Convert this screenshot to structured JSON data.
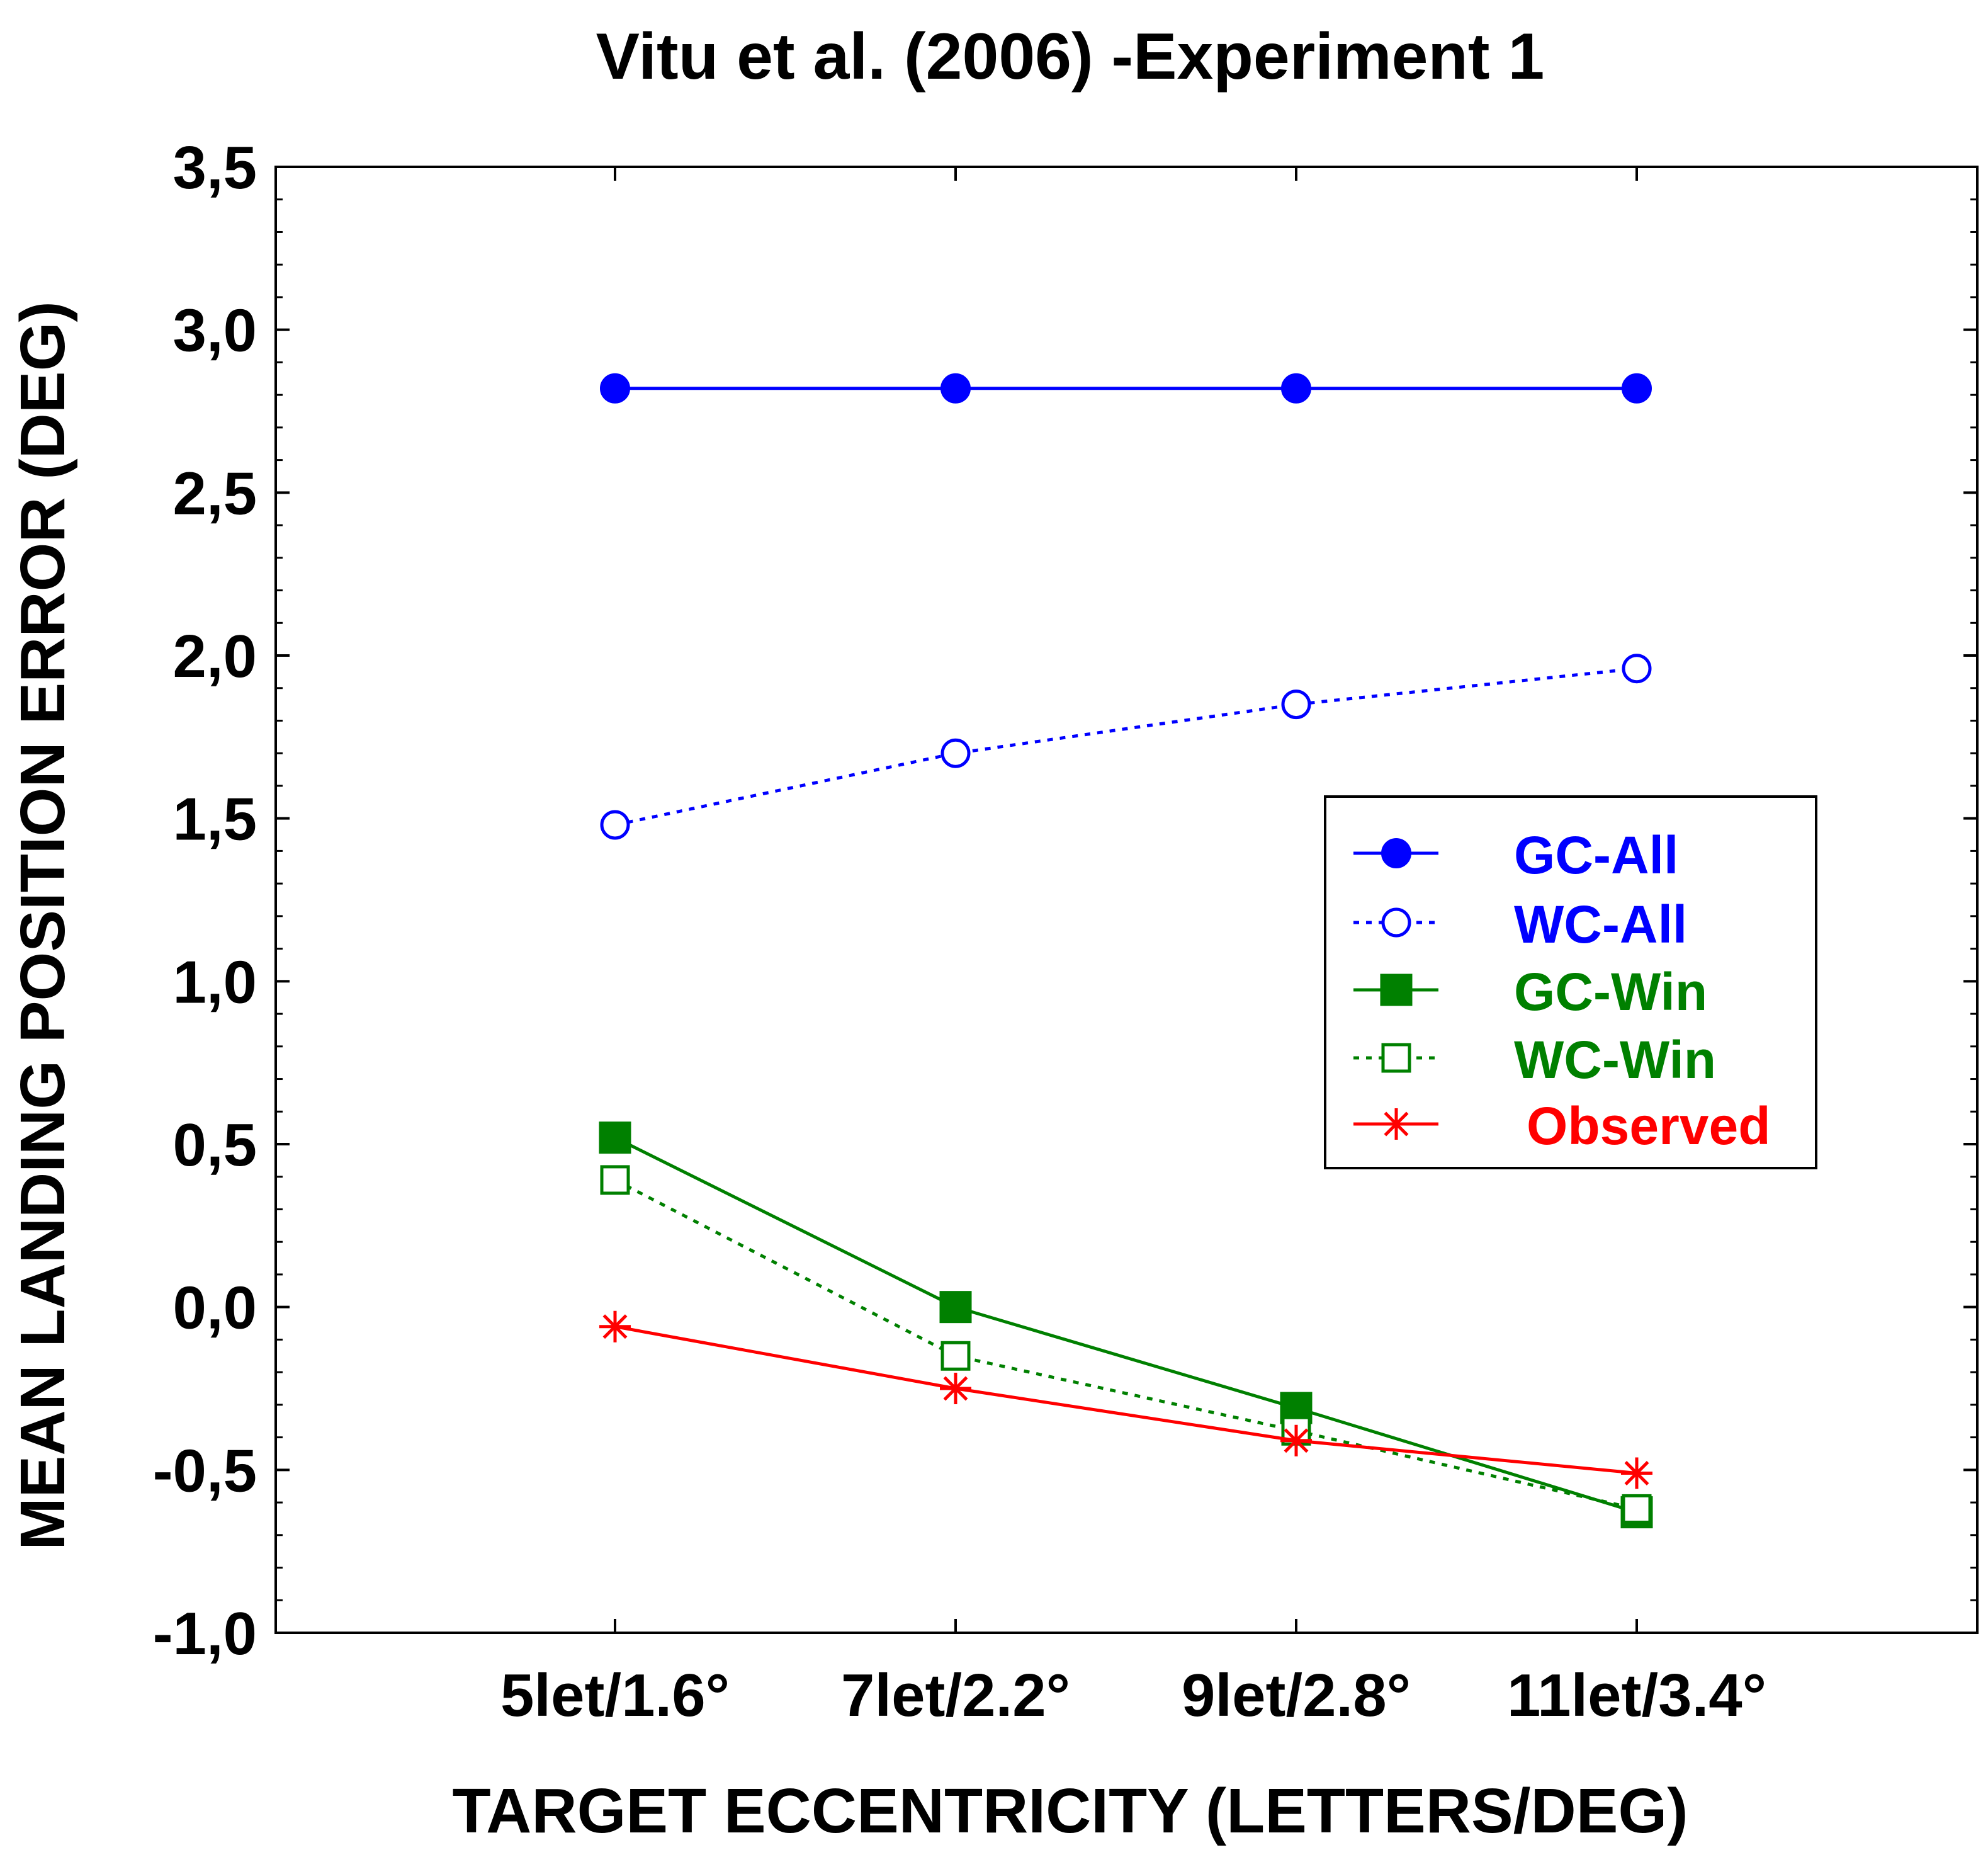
{
  "chart_data": {
    "type": "line",
    "title": "Vitu et al. (2006) -Experiment 1",
    "xlabel": "TARGET ECCENTRICITY (LETTERS/DEG)",
    "ylabel": "MEAN LANDING POSITION ERROR (DEG)",
    "categories": [
      "5let/1.6°",
      "7let/2.2°",
      "9let/2.8°",
      "11let/3.4°"
    ],
    "ylim": [
      -1.0,
      3.5
    ],
    "yticks": [
      -1.0,
      -0.5,
      0.0,
      0.5,
      1.0,
      1.5,
      2.0,
      2.5,
      3.0,
      3.5
    ],
    "ytick_labels": [
      "-1,0",
      "-0,5",
      "0,0",
      "0,5",
      "1,0",
      "1,5",
      "2,0",
      "2,5",
      "3,0",
      "3,5"
    ],
    "grid": false,
    "legend_position": "center-right",
    "series": [
      {
        "name": "GC-All",
        "color": "#0000ff",
        "line": "solid",
        "marker": "filled-circle",
        "values": [
          2.82,
          2.82,
          2.82,
          2.82
        ]
      },
      {
        "name": "WC-All",
        "color": "#0000ff",
        "line": "dotted",
        "marker": "open-circle",
        "values": [
          1.48,
          1.7,
          1.85,
          1.96
        ]
      },
      {
        "name": "GC-Win",
        "color": "#008000",
        "line": "solid",
        "marker": "filled-square",
        "values": [
          0.52,
          0.0,
          -0.31,
          -0.63
        ]
      },
      {
        "name": "WC-Win",
        "color": "#008000",
        "line": "dotted",
        "marker": "open-square",
        "values": [
          0.39,
          -0.15,
          -0.38,
          -0.62
        ]
      },
      {
        "name": "Observed",
        "color": "#ff0000",
        "line": "solid",
        "marker": "asterisk",
        "values": [
          -0.06,
          -0.25,
          -0.41,
          -0.51
        ]
      }
    ]
  }
}
